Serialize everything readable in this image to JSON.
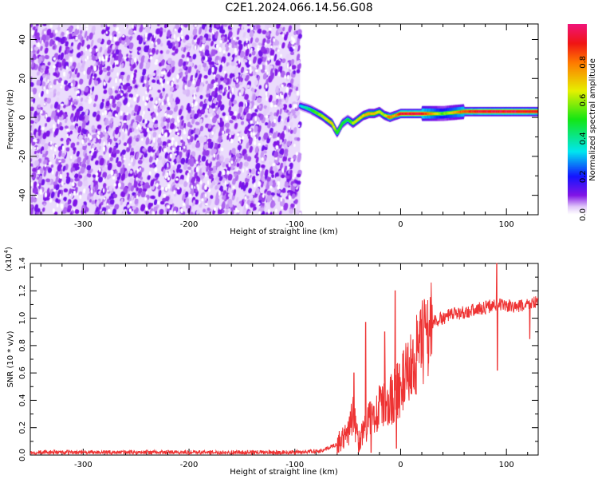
{
  "title": "C2E1.2024.066.14.56.G08",
  "chart_data": [
    {
      "type": "heatmap",
      "xlabel": "Height of straight line (km)",
      "ylabel": "Frequency (Hz)",
      "xlim": [
        -350,
        130
      ],
      "ylim": [
        -50,
        48
      ],
      "xticks": [
        -300,
        -200,
        -100,
        0,
        100
      ],
      "yticks": [
        -40,
        -20,
        0,
        20,
        40
      ],
      "noise_region_x": [
        -350,
        -95
      ],
      "signal_trace": {
        "x": [
          -95,
          -85,
          -75,
          -65,
          -60,
          -55,
          -50,
          -45,
          -40,
          -35,
          -30,
          -25,
          -20,
          -15,
          -10,
          -5,
          0,
          20,
          40,
          60,
          80,
          100,
          130
        ],
        "freq": [
          6,
          4,
          1,
          -3,
          -8,
          -3,
          -1,
          -3,
          -1,
          1,
          2,
          2,
          3,
          1,
          0,
          1,
          2,
          2,
          2,
          3,
          3,
          3,
          3
        ],
        "amplitude": [
          0.3,
          0.45,
          0.6,
          0.7,
          0.5,
          0.5,
          0.45,
          0.6,
          0.65,
          0.7,
          0.75,
          0.7,
          0.65,
          0.6,
          0.85,
          0.7,
          0.95,
          0.95,
          0.55,
          0.85,
          0.95,
          0.95,
          0.9
        ]
      },
      "colorbar": {
        "label": "Normalized spectral amplitude",
        "ticks": [
          0.0,
          0.2,
          0.4,
          0.6,
          0.8
        ],
        "range": [
          0,
          1
        ]
      }
    },
    {
      "type": "line",
      "xlabel": "Height of straight line (km)",
      "ylabel": "SNR (10 * v/v)",
      "yscale_label": "(x10",
      "yscale_exp": "4",
      "xlim": [
        -350,
        130
      ],
      "ylim": [
        0,
        1.4
      ],
      "xticks": [
        -300,
        -200,
        -100,
        0,
        100
      ],
      "yticks": [
        0.0,
        0.2,
        0.4,
        0.6,
        0.8,
        1.0,
        1.2,
        1.4
      ],
      "series": [
        {
          "name": "SNR",
          "color": "#ee3333",
          "x": [
            -350,
            -100,
            -75,
            -60,
            -50,
            -45,
            -40,
            -30,
            -20,
            -10,
            0,
            10,
            20,
            30,
            50,
            70,
            90,
            110,
            130
          ],
          "y": [
            0.02,
            0.02,
            0.03,
            0.08,
            0.15,
            0.3,
            0.1,
            0.25,
            0.35,
            0.4,
            0.5,
            0.65,
            0.8,
            0.97,
            1.03,
            1.06,
            1.1,
            1.08,
            1.12
          ]
        }
      ],
      "spikes": {
        "x": [
          -44,
          -33,
          -28,
          -15,
          -5,
          -4,
          91,
          91.5,
          122
        ],
        "y": [
          0.6,
          0.97,
          0.02,
          0.9,
          1.2,
          0.05,
          1.4,
          0.62,
          0.85
        ]
      }
    }
  ]
}
